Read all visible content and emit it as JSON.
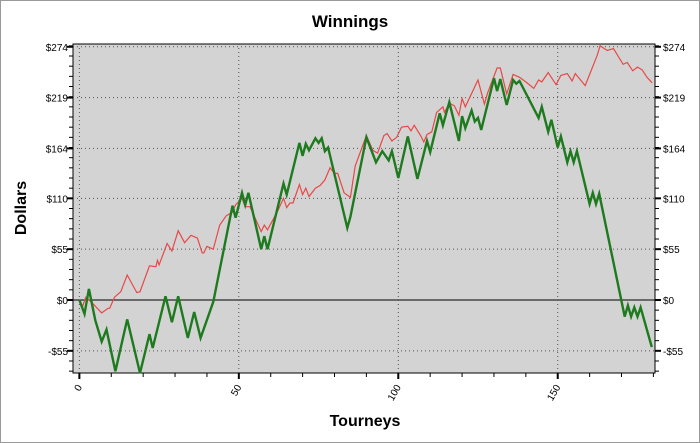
{
  "chart_data": {
    "type": "line",
    "title": "Winnings",
    "xlabel": "Tourneys",
    "ylabel": "Dollars",
    "xlim": [
      -2,
      180.5
    ],
    "ylim": [
      -79,
      277
    ],
    "x_ticks": [
      0,
      50,
      100,
      150
    ],
    "y_ticks": [
      274,
      219,
      164,
      110,
      55,
      0,
      -55
    ],
    "y_tick_labels": [
      "$274",
      "$219",
      "$164",
      "$110",
      "$55",
      "$0",
      "-$55"
    ],
    "grid": true,
    "background": "#d3d3d3",
    "series": [
      {
        "color": "#e84848",
        "points": [
          [
            0,
            0
          ],
          [
            1,
            -7
          ],
          [
            2,
            3
          ],
          [
            4,
            -3
          ],
          [
            7,
            -14
          ],
          [
            9,
            -9
          ],
          [
            9.5,
            -9
          ],
          [
            11,
            3
          ],
          [
            13,
            9
          ],
          [
            15,
            27
          ],
          [
            18,
            8
          ],
          [
            19,
            9
          ],
          [
            22,
            37
          ],
          [
            24,
            36
          ],
          [
            24.5,
            43
          ],
          [
            25,
            38
          ],
          [
            27.5,
            61
          ],
          [
            29,
            53
          ],
          [
            31,
            75
          ],
          [
            33,
            62
          ],
          [
            35,
            70
          ],
          [
            37,
            67
          ],
          [
            38.5,
            51
          ],
          [
            39,
            51
          ],
          [
            40,
            58
          ],
          [
            42,
            55
          ],
          [
            43,
            68
          ],
          [
            44,
            81
          ],
          [
            46,
            91
          ],
          [
            48,
            95
          ],
          [
            49,
            103
          ],
          [
            51,
            110
          ],
          [
            52,
            101
          ],
          [
            53.5,
            101
          ],
          [
            57,
            74
          ],
          [
            58,
            81
          ],
          [
            59,
            76
          ],
          [
            62,
            95
          ],
          [
            64,
            110
          ],
          [
            65,
            100
          ],
          [
            66,
            105
          ],
          [
            67,
            105
          ],
          [
            69,
            125
          ],
          [
            70,
            114
          ],
          [
            71,
            121
          ],
          [
            72,
            112
          ],
          [
            74,
            121
          ],
          [
            75.5,
            124
          ],
          [
            77,
            130
          ],
          [
            78.6,
            143
          ],
          [
            80,
            137
          ],
          [
            81,
            137
          ],
          [
            83,
            116
          ],
          [
            85,
            111
          ],
          [
            86.5,
            145
          ],
          [
            90,
            178
          ],
          [
            92,
            162
          ],
          [
            93.5,
            159
          ],
          [
            95.5,
            178
          ],
          [
            96.5,
            180
          ],
          [
            98,
            172
          ],
          [
            99.5,
            176
          ],
          [
            101,
            187
          ],
          [
            103,
            188
          ],
          [
            104,
            183
          ],
          [
            105,
            189
          ],
          [
            107,
            178
          ],
          [
            108,
            171
          ],
          [
            109,
            179
          ],
          [
            110.5,
            182
          ],
          [
            112,
            203
          ],
          [
            114,
            209
          ],
          [
            114.5,
            203
          ],
          [
            116,
            213
          ],
          [
            117.6,
            210
          ],
          [
            119,
            200
          ],
          [
            120,
            218
          ],
          [
            121,
            209
          ],
          [
            125,
            238
          ],
          [
            127,
            212
          ],
          [
            128,
            224
          ],
          [
            131,
            251
          ],
          [
            132,
            251
          ],
          [
            134,
            223
          ],
          [
            136,
            244
          ],
          [
            138,
            241
          ],
          [
            140,
            236
          ],
          [
            142.5,
            229
          ],
          [
            144,
            238
          ],
          [
            145,
            236
          ],
          [
            147,
            246
          ],
          [
            149.5,
            233
          ],
          [
            151,
            243
          ],
          [
            153,
            245
          ],
          [
            154.5,
            237
          ],
          [
            155.5,
            245
          ],
          [
            158.6,
            232
          ],
          [
            162.4,
            265
          ],
          [
            163.3,
            275
          ],
          [
            165.5,
            270
          ],
          [
            167.5,
            272
          ],
          [
            170.5,
            255
          ],
          [
            171.8,
            257
          ],
          [
            173.5,
            248
          ],
          [
            175,
            252
          ],
          [
            176.5,
            249
          ],
          [
            178,
            241
          ],
          [
            179.6,
            235
          ]
        ]
      },
      {
        "color": "#1e7a1e",
        "points": [
          [
            0,
            0
          ],
          [
            1.6,
            -15
          ],
          [
            3,
            12
          ],
          [
            5,
            -22
          ],
          [
            7,
            -45
          ],
          [
            8.5,
            -32
          ],
          [
            11.3,
            -77
          ],
          [
            15,
            -21
          ],
          [
            19,
            -79
          ],
          [
            22,
            -37
          ],
          [
            23,
            -52
          ],
          [
            27,
            4
          ],
          [
            29,
            -24
          ],
          [
            31,
            4
          ],
          [
            34,
            -41
          ],
          [
            36,
            -13
          ],
          [
            38,
            -41
          ],
          [
            42,
            -2
          ],
          [
            48,
            102
          ],
          [
            49,
            89
          ],
          [
            51,
            116
          ],
          [
            52,
            103
          ],
          [
            53,
            116
          ],
          [
            57,
            55
          ],
          [
            58,
            69
          ],
          [
            59,
            55
          ],
          [
            64,
            126
          ],
          [
            65,
            114
          ],
          [
            69,
            170
          ],
          [
            70,
            156
          ],
          [
            71,
            169
          ],
          [
            72,
            162
          ],
          [
            74,
            175
          ],
          [
            75,
            170
          ],
          [
            76,
            175
          ],
          [
            77,
            161
          ],
          [
            78,
            165
          ],
          [
            84,
            78
          ],
          [
            85,
            90
          ],
          [
            90,
            176
          ],
          [
            93,
            149
          ],
          [
            95,
            161
          ],
          [
            97,
            151
          ],
          [
            98,
            161
          ],
          [
            100,
            132
          ],
          [
            103,
            177
          ],
          [
            106,
            131
          ],
          [
            109,
            172
          ],
          [
            110,
            160
          ],
          [
            113,
            202
          ],
          [
            114,
            189
          ],
          [
            116,
            214
          ],
          [
            119,
            172
          ],
          [
            120,
            199
          ],
          [
            121,
            186
          ],
          [
            123,
            205
          ],
          [
            124,
            193
          ],
          [
            125,
            197
          ],
          [
            126,
            184
          ],
          [
            130,
            240
          ],
          [
            131,
            226
          ],
          [
            132,
            239
          ],
          [
            134,
            211
          ],
          [
            136,
            238
          ],
          [
            137,
            234
          ],
          [
            138,
            237
          ],
          [
            144,
            197
          ],
          [
            145,
            209
          ],
          [
            147,
            182
          ],
          [
            148,
            195
          ],
          [
            150,
            165
          ],
          [
            151,
            177
          ],
          [
            153,
            149
          ],
          [
            154,
            161
          ],
          [
            155,
            149
          ],
          [
            156,
            161
          ],
          [
            160,
            104
          ],
          [
            161,
            116
          ],
          [
            162,
            104
          ],
          [
            163,
            115
          ],
          [
            171,
            -18
          ],
          [
            172,
            -6
          ],
          [
            173,
            -18
          ],
          [
            174,
            -8
          ],
          [
            175,
            -18
          ],
          [
            176,
            -8
          ],
          [
            179.5,
            -51
          ]
        ]
      }
    ]
  }
}
